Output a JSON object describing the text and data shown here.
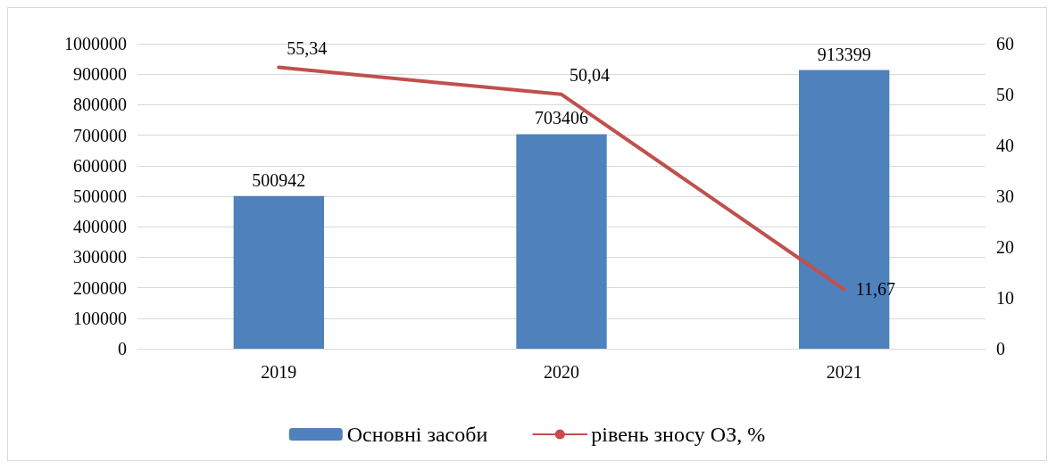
{
  "chart_data": {
    "type": "bar",
    "categories": [
      "2019",
      "2020",
      "2021"
    ],
    "series": [
      {
        "name": "Основні засоби",
        "color": "#4f81bd",
        "values": [
          500942,
          703406,
          913399
        ],
        "value_labels": [
          "500942",
          "703406",
          "913399"
        ]
      },
      {
        "name": "рівень зносу ОЗ, %",
        "type": "line",
        "axis": "y2",
        "color": "#c0504d",
        "values": [
          55.34,
          50.04,
          11.67
        ],
        "value_labels": [
          "55,34",
          "50,04",
          "11,67"
        ],
        "marker": "none",
        "line_style": "solid"
      }
    ],
    "ylim": [
      0,
      1000000
    ],
    "yticks": [
      0,
      100000,
      200000,
      300000,
      400000,
      500000,
      600000,
      700000,
      800000,
      900000,
      1000000
    ],
    "y2lim": [
      0,
      60
    ],
    "y2ticks": [
      0,
      10,
      20,
      30,
      40,
      50,
      60
    ],
    "grid": "y",
    "legend": "bottom"
  }
}
